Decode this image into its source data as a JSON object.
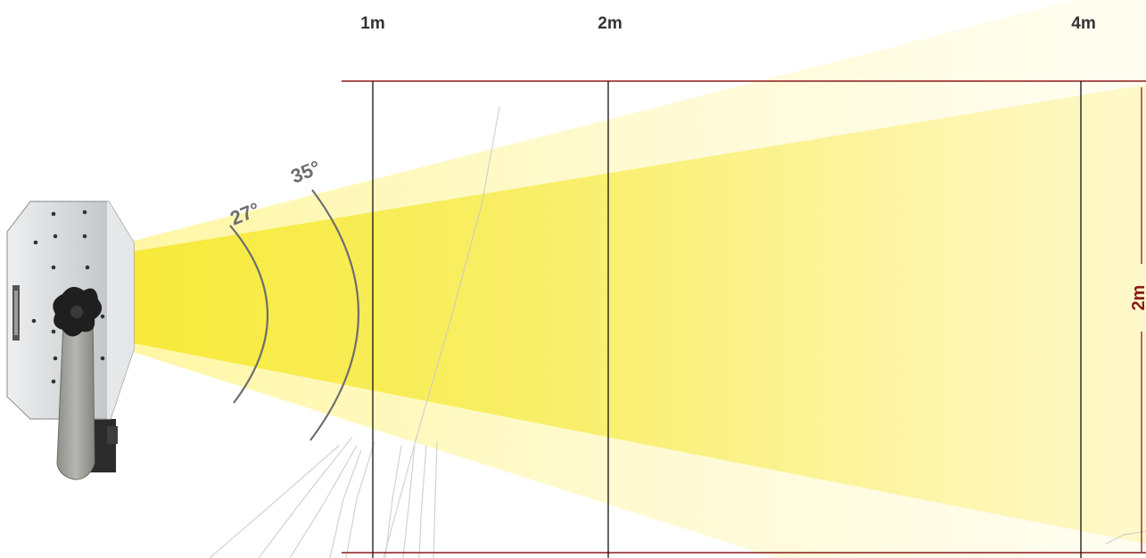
{
  "distances": [
    {
      "label": "1m",
      "meters": 1
    },
    {
      "label": "2m",
      "meters": 2
    },
    {
      "label": "4m",
      "meters": 4
    }
  ],
  "angles": {
    "narrow": {
      "label": "27°",
      "degrees": 27
    },
    "wide": {
      "label": "35°",
      "degrees": 35
    }
  },
  "height_marker": {
    "label": "2m",
    "meters": 2
  },
  "colors": {
    "beam_inner": "#f8ec40",
    "beam_outer": "#fff7a8",
    "frame_line": "#8b1a1a",
    "marker_line": "#111111",
    "arc": "#6e6e6e",
    "fixture_body": "#d9dbdd"
  },
  "icons": {
    "fixture": "spotlight-fixture-icon"
  }
}
